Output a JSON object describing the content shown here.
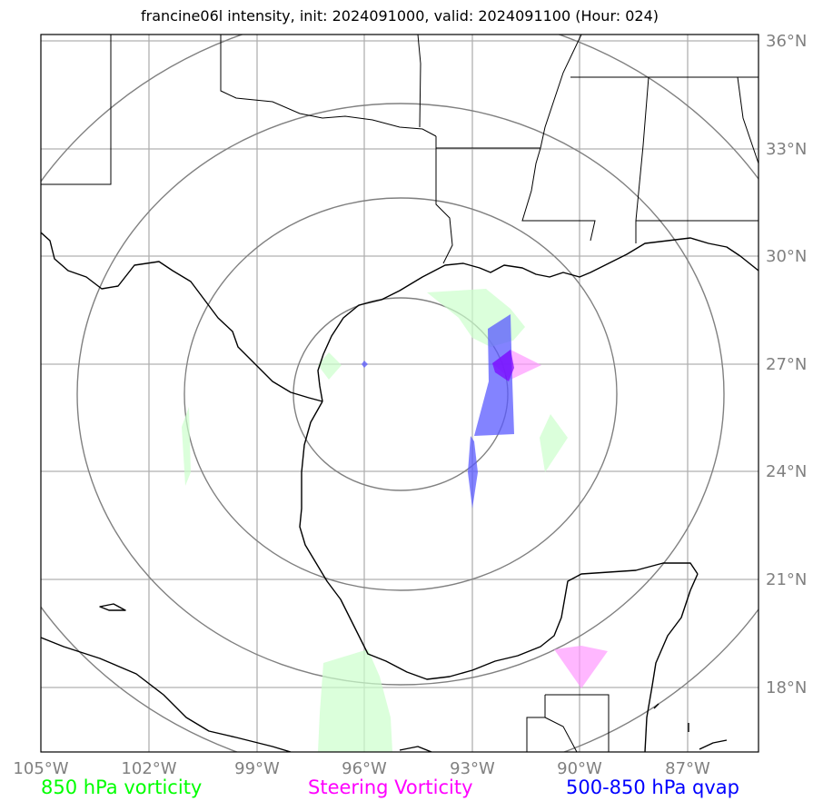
{
  "title": "francine06l intensity, init: 2024091000, valid: 2024091100 (Hour: 024)",
  "lon_ticks": [
    "105°W",
    "102°W",
    "99°W",
    "96°W",
    "93°W",
    "90°W",
    "87°W"
  ],
  "lat_ticks": [
    "36°N",
    "33°N",
    "30°N",
    "27°N",
    "24°N",
    "21°N",
    "18°N"
  ],
  "legend": {
    "vorticity_850": "850 hPa vorticity",
    "steering": "Steering Vorticity",
    "qvap": "500-850 hPa qvap"
  },
  "colors": {
    "vorticity_850": "#00ff00",
    "steering": "#ff00ff",
    "qvap": "#0000ff",
    "grid": "#b0b0b0",
    "range_rings": "#808080",
    "coast": "#000000"
  },
  "map_extent": {
    "lon": [
      -105,
      -85
    ],
    "lat": [
      16.8,
      36.2
    ]
  }
}
